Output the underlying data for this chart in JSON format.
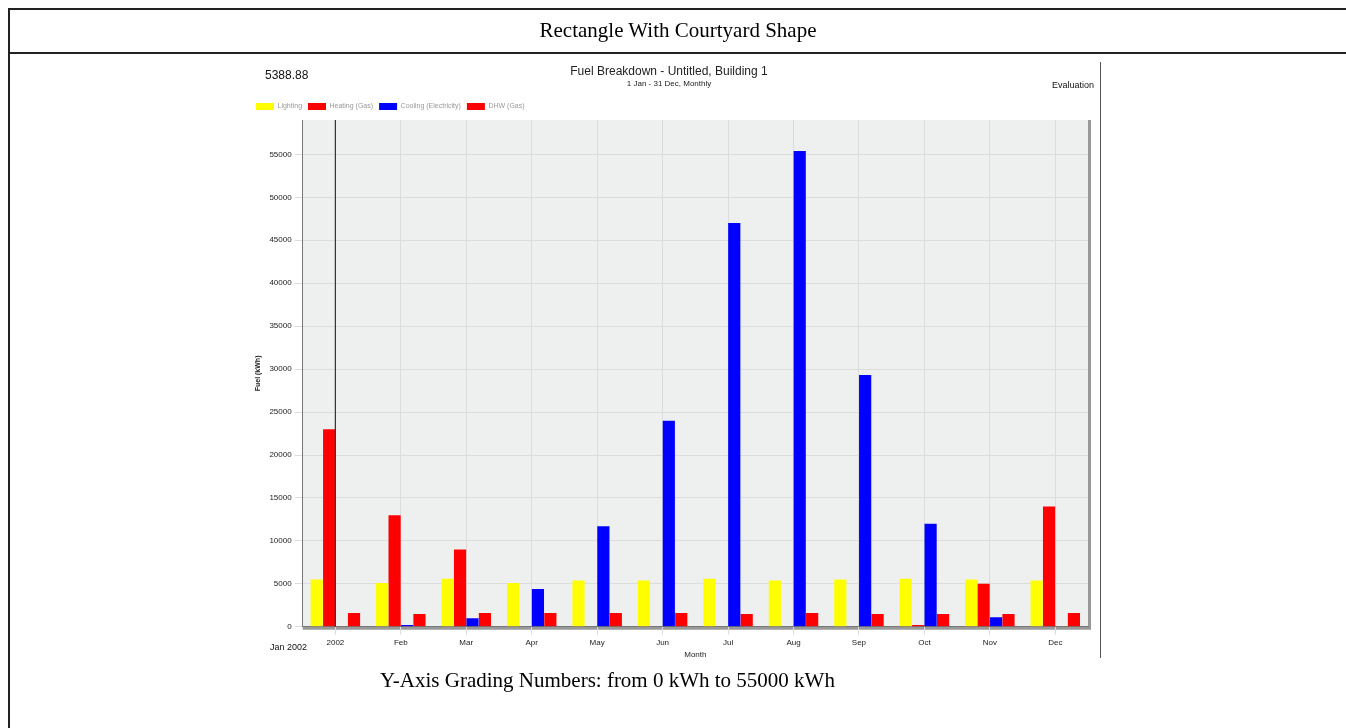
{
  "chart_data": {
    "type": "bar",
    "title": "Fuel Breakdown - Untitled, Building 1",
    "subtitle": "1 Jan - 31 Dec, Monthly",
    "xlabel": "Month",
    "ylabel": "Fuel (kWh)",
    "categories": [
      "2002",
      "Feb",
      "Mar",
      "Apr",
      "May",
      "Jun",
      "Jul",
      "Aug",
      "Sep",
      "Oct",
      "Nov",
      "Dec"
    ],
    "series": [
      {
        "name": "Lighting",
        "color": "#ffff00",
        "values": [
          5500,
          5100,
          5600,
          5100,
          5400,
          5400,
          5600,
          5400,
          5500,
          5600,
          5500,
          5400
        ]
      },
      {
        "name": "Heating (Gas)",
        "color": "#ff0000",
        "values": [
          23000,
          13000,
          9000,
          0,
          0,
          0,
          0,
          0,
          0,
          200,
          5000,
          14000
        ]
      },
      {
        "name": "Cooling (Electricity)",
        "color": "#0000ff",
        "values": [
          0,
          200,
          1000,
          4400,
          11700,
          24000,
          47000,
          55400,
          29300,
          12000,
          1100,
          0
        ]
      },
      {
        "name": "DHW (Gas)",
        "color": "#ff0000",
        "values": [
          1600,
          1500,
          1600,
          1600,
          1600,
          1600,
          1500,
          1600,
          1500,
          1500,
          1500,
          1600
        ]
      }
    ],
    "ylim": [
      0,
      59000
    ],
    "yticks": [
      0,
      5000,
      10000,
      15000,
      20000,
      25000,
      30000,
      35000,
      40000,
      45000,
      50000,
      55000
    ],
    "grid": true,
    "legend": "top left",
    "ref_lines": [
      {
        "axis": "x",
        "value": "2002",
        "color": "#333333"
      }
    ],
    "annotations": [
      "Rectangle With Courtyard Shape",
      "5388.88",
      "Evaluation",
      "Jan 2002",
      "Y-Axis Grading Numbers: from 0 kWh to 55000 kWh"
    ]
  }
}
